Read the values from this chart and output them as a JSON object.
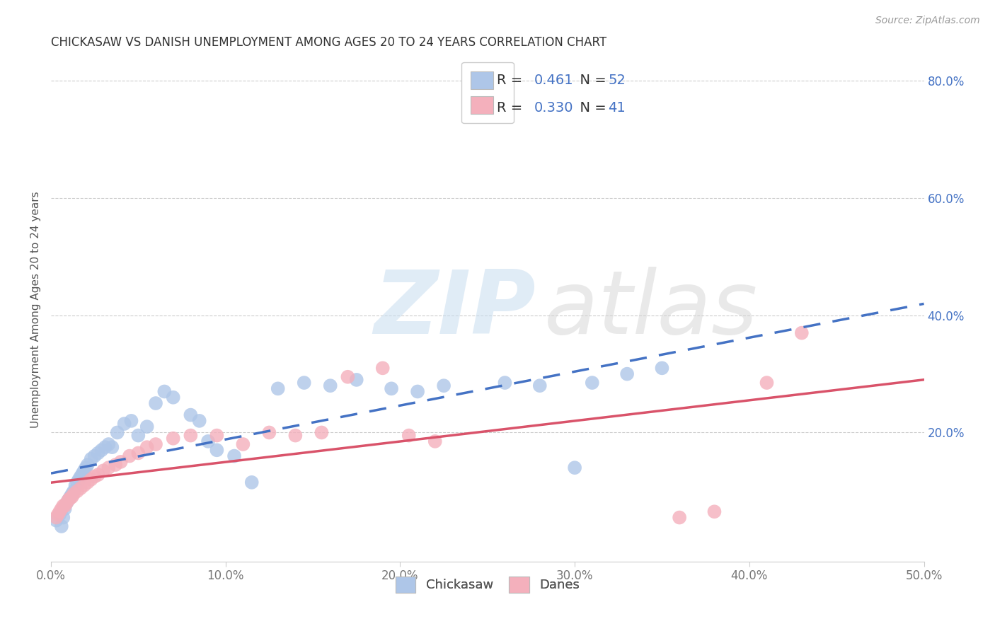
{
  "title": "CHICKASAW VS DANISH UNEMPLOYMENT AMONG AGES 20 TO 24 YEARS CORRELATION CHART",
  "source": "Source: ZipAtlas.com",
  "ylabel": "Unemployment Among Ages 20 to 24 years",
  "xlim": [
    0.0,
    0.5
  ],
  "ylim": [
    -0.02,
    0.84
  ],
  "xtick_positions": [
    0.0,
    0.1,
    0.2,
    0.3,
    0.4,
    0.5
  ],
  "xtick_labels": [
    "0.0%",
    "10.0%",
    "20.0%",
    "30.0%",
    "40.0%",
    "50.0%"
  ],
  "yticks_right": [
    0.2,
    0.4,
    0.6,
    0.8
  ],
  "ytick_labels_right": [
    "20.0%",
    "40.0%",
    "60.0%",
    "80.0%"
  ],
  "grid_color": "#cccccc",
  "background_color": "#ffffff",
  "chickasaw_color": "#aec6e8",
  "danes_color": "#f4b0bc",
  "chickasaw_line_color": "#4472c4",
  "danes_line_color": "#d9536a",
  "legend_R_chickasaw": "0.461",
  "legend_N_chickasaw": "52",
  "legend_R_danes": "0.330",
  "legend_N_danes": "41",
  "legend_text_color": "#4472c4",
  "legend_label_color": "#333333",
  "chickasaw_x": [
    0.003,
    0.005,
    0.006,
    0.007,
    0.008,
    0.009,
    0.01,
    0.011,
    0.012,
    0.013,
    0.014,
    0.015,
    0.016,
    0.017,
    0.018,
    0.019,
    0.02,
    0.021,
    0.023,
    0.025,
    0.027,
    0.029,
    0.031,
    0.033,
    0.035,
    0.038,
    0.042,
    0.046,
    0.05,
    0.055,
    0.06,
    0.065,
    0.07,
    0.08,
    0.085,
    0.09,
    0.095,
    0.105,
    0.115,
    0.13,
    0.145,
    0.16,
    0.175,
    0.195,
    0.21,
    0.225,
    0.26,
    0.28,
    0.3,
    0.31,
    0.33,
    0.35
  ],
  "chickasaw_y": [
    0.05,
    0.06,
    0.04,
    0.055,
    0.07,
    0.08,
    0.085,
    0.09,
    0.095,
    0.1,
    0.11,
    0.115,
    0.12,
    0.125,
    0.13,
    0.135,
    0.14,
    0.145,
    0.155,
    0.16,
    0.165,
    0.17,
    0.175,
    0.18,
    0.175,
    0.2,
    0.215,
    0.22,
    0.195,
    0.21,
    0.25,
    0.27,
    0.26,
    0.23,
    0.22,
    0.185,
    0.17,
    0.16,
    0.115,
    0.275,
    0.285,
    0.28,
    0.29,
    0.275,
    0.27,
    0.28,
    0.285,
    0.28,
    0.14,
    0.285,
    0.3,
    0.31
  ],
  "danes_x": [
    0.003,
    0.004,
    0.005,
    0.006,
    0.007,
    0.008,
    0.009,
    0.01,
    0.011,
    0.012,
    0.013,
    0.015,
    0.017,
    0.019,
    0.021,
    0.023,
    0.025,
    0.027,
    0.03,
    0.033,
    0.037,
    0.04,
    0.045,
    0.05,
    0.055,
    0.06,
    0.07,
    0.08,
    0.095,
    0.11,
    0.125,
    0.14,
    0.155,
    0.17,
    0.19,
    0.205,
    0.22,
    0.36,
    0.38,
    0.41,
    0.43
  ],
  "danes_y": [
    0.055,
    0.06,
    0.065,
    0.07,
    0.075,
    0.075,
    0.08,
    0.085,
    0.088,
    0.09,
    0.095,
    0.1,
    0.105,
    0.11,
    0.115,
    0.12,
    0.125,
    0.128,
    0.135,
    0.14,
    0.145,
    0.15,
    0.16,
    0.165,
    0.175,
    0.18,
    0.19,
    0.195,
    0.195,
    0.18,
    0.2,
    0.195,
    0.2,
    0.295,
    0.31,
    0.195,
    0.185,
    0.055,
    0.065,
    0.285,
    0.37
  ]
}
